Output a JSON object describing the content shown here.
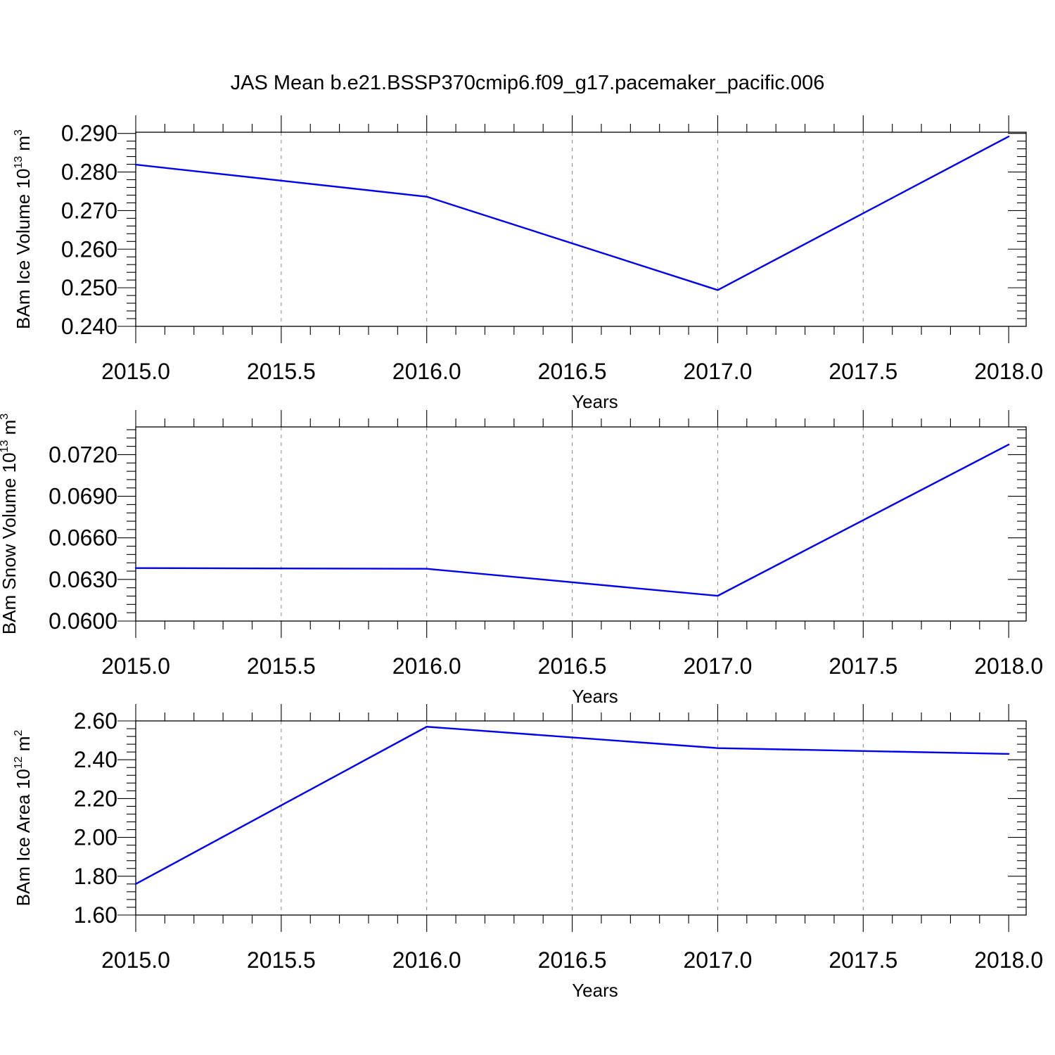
{
  "title": "JAS Mean b.e21.BSSP370cmip6.f09_g17.pacemaker_pacific.006",
  "chart_data": [
    {
      "type": "line",
      "xlabel": "Years",
      "ylabel_main": "BAm Ice Volume 10",
      "ylabel_exp": "13",
      "ylabel_unit": " m",
      "ylabel_unit_exp": "3",
      "x": [
        2015,
        2016,
        2017,
        2018
      ],
      "xlim": [
        2015,
        2018.06
      ],
      "xticks": [
        "2015.0",
        "2015.5",
        "2016.0",
        "2016.5",
        "2017.0",
        "2017.5",
        "2018.0"
      ],
      "ylim": [
        0.24,
        0.2903
      ],
      "yticks": [
        "0.240",
        "0.250",
        "0.260",
        "0.270",
        "0.280",
        "0.290"
      ],
      "series": [
        {
          "values": [
            0.2819,
            0.2736,
            0.2494,
            0.2892
          ],
          "color": "#0000ee"
        }
      ],
      "grid": "vertical-dashed"
    },
    {
      "type": "line",
      "xlabel": "Years",
      "ylabel_main": "BAm Snow Volume 10",
      "ylabel_exp": "13",
      "ylabel_unit": " m",
      "ylabel_unit_exp": "3",
      "x": [
        2015,
        2016,
        2017,
        2018
      ],
      "xlim": [
        2015,
        2018.06
      ],
      "xticks": [
        "2015.0",
        "2015.5",
        "2016.0",
        "2016.5",
        "2017.0",
        "2017.5",
        "2018.0"
      ],
      "ylim": [
        0.06,
        0.074
      ],
      "yticks": [
        "0.0600",
        "0.0630",
        "0.0660",
        "0.0690",
        "0.0720"
      ],
      "series": [
        {
          "values": [
            0.06382,
            0.06377,
            0.06182,
            0.07273
          ],
          "color": "#0000ee"
        }
      ],
      "grid": "vertical-dashed"
    },
    {
      "type": "line",
      "xlabel": "Years",
      "ylabel_main": "BAm Ice Area 10",
      "ylabel_exp": "12",
      "ylabel_unit": " m",
      "ylabel_unit_exp": "2",
      "x": [
        2015,
        2016,
        2017,
        2018
      ],
      "xlim": [
        2015,
        2018.06
      ],
      "xticks": [
        "2015.0",
        "2015.5",
        "2016.0",
        "2016.5",
        "2017.0",
        "2017.5",
        "2018.0"
      ],
      "ylim": [
        1.6,
        2.6
      ],
      "yticks": [
        "1.60",
        "1.80",
        "2.00",
        "2.20",
        "2.40",
        "2.60"
      ],
      "series": [
        {
          "values": [
            1.76,
            2.57,
            2.46,
            2.43
          ],
          "color": "#0000ee"
        }
      ],
      "grid": "vertical-dashed"
    }
  ]
}
